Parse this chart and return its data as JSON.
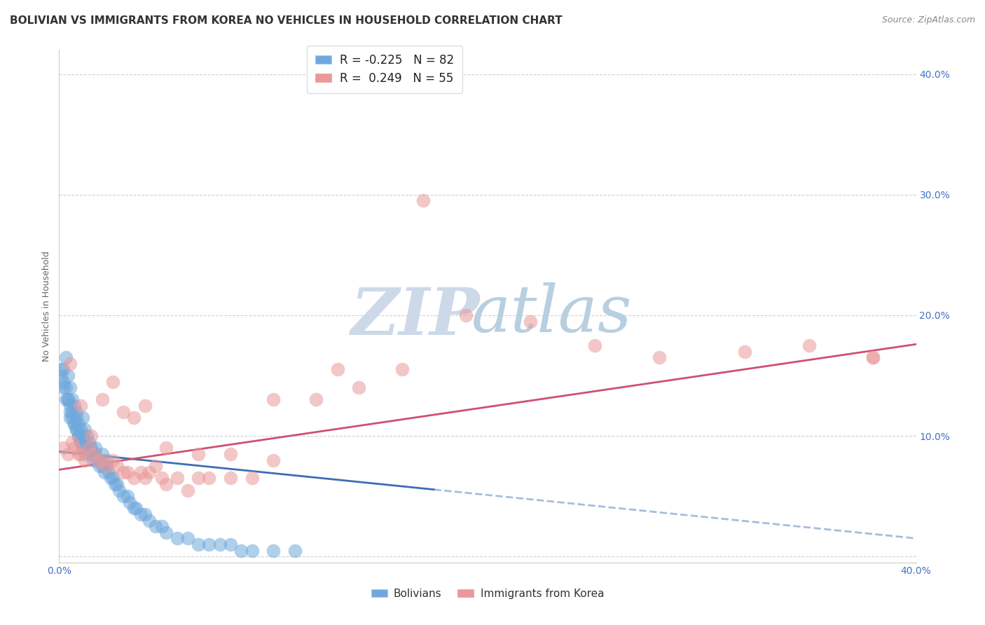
{
  "title": "BOLIVIAN VS IMMIGRANTS FROM KOREA NO VEHICLES IN HOUSEHOLD CORRELATION CHART",
  "source": "Source: ZipAtlas.com",
  "ylabel": "No Vehicles in Household",
  "xlim": [
    0.0,
    0.4
  ],
  "ylim": [
    -0.005,
    0.42
  ],
  "bolivians_color": "#6fa8dc",
  "korea_color": "#ea9999",
  "legend_R_bolivians": "R = -0.225",
  "legend_N_bolivians": "N = 82",
  "legend_R_korea": "R =  0.249",
  "legend_N_korea": "N = 55",
  "watermark_zip_color": "#cdd9e8",
  "watermark_atlas_color": "#b8cfe0",
  "trend_bolivians_color": "#3d6eb5",
  "trend_korea_color": "#d05070",
  "background_color": "#ffffff",
  "grid_color": "#cccccc",
  "title_fontsize": 11,
  "axis_label_fontsize": 9,
  "tick_fontsize": 10,
  "tick_color": "#4472c4",
  "source_color": "#888888",
  "bolivians_x": [
    0.001,
    0.002,
    0.002,
    0.003,
    0.003,
    0.004,
    0.004,
    0.005,
    0.005,
    0.005,
    0.006,
    0.006,
    0.007,
    0.007,
    0.008,
    0.008,
    0.008,
    0.009,
    0.009,
    0.01,
    0.01,
    0.01,
    0.011,
    0.011,
    0.012,
    0.012,
    0.013,
    0.013,
    0.014,
    0.014,
    0.015,
    0.015,
    0.016,
    0.016,
    0.017,
    0.017,
    0.018,
    0.019,
    0.02,
    0.02,
    0.021,
    0.022,
    0.022,
    0.023,
    0.024,
    0.025,
    0.026,
    0.027,
    0.028,
    0.03,
    0.032,
    0.033,
    0.035,
    0.036,
    0.038,
    0.04,
    0.042,
    0.045,
    0.048,
    0.05,
    0.055,
    0.06,
    0.065,
    0.07,
    0.075,
    0.08,
    0.085,
    0.09,
    0.1,
    0.11,
    0.001,
    0.002,
    0.003,
    0.004,
    0.005,
    0.006,
    0.007,
    0.008,
    0.009,
    0.01,
    0.011,
    0.012
  ],
  "bolivians_y": [
    0.155,
    0.155,
    0.145,
    0.165,
    0.14,
    0.15,
    0.13,
    0.12,
    0.115,
    0.14,
    0.13,
    0.12,
    0.11,
    0.125,
    0.105,
    0.115,
    0.12,
    0.1,
    0.11,
    0.1,
    0.105,
    0.095,
    0.1,
    0.115,
    0.095,
    0.105,
    0.09,
    0.1,
    0.09,
    0.095,
    0.085,
    0.09,
    0.08,
    0.085,
    0.085,
    0.09,
    0.08,
    0.075,
    0.075,
    0.085,
    0.07,
    0.075,
    0.08,
    0.07,
    0.065,
    0.065,
    0.06,
    0.06,
    0.055,
    0.05,
    0.05,
    0.045,
    0.04,
    0.04,
    0.035,
    0.035,
    0.03,
    0.025,
    0.025,
    0.02,
    0.015,
    0.015,
    0.01,
    0.01,
    0.01,
    0.01,
    0.005,
    0.005,
    0.005,
    0.005,
    0.15,
    0.14,
    0.13,
    0.13,
    0.125,
    0.115,
    0.11,
    0.105,
    0.1,
    0.095,
    0.09,
    0.085
  ],
  "korea_x": [
    0.002,
    0.004,
    0.006,
    0.007,
    0.009,
    0.01,
    0.012,
    0.014,
    0.016,
    0.018,
    0.02,
    0.022,
    0.025,
    0.027,
    0.03,
    0.032,
    0.035,
    0.038,
    0.04,
    0.042,
    0.045,
    0.048,
    0.05,
    0.055,
    0.06,
    0.065,
    0.07,
    0.08,
    0.09,
    0.1,
    0.12,
    0.14,
    0.16,
    0.19,
    0.22,
    0.25,
    0.28,
    0.32,
    0.35,
    0.38,
    0.005,
    0.01,
    0.015,
    0.02,
    0.025,
    0.03,
    0.035,
    0.04,
    0.05,
    0.065,
    0.08,
    0.1,
    0.13,
    0.17,
    0.38
  ],
  "korea_y": [
    0.09,
    0.085,
    0.095,
    0.09,
    0.085,
    0.085,
    0.08,
    0.09,
    0.085,
    0.08,
    0.08,
    0.075,
    0.08,
    0.075,
    0.07,
    0.07,
    0.065,
    0.07,
    0.065,
    0.07,
    0.075,
    0.065,
    0.06,
    0.065,
    0.055,
    0.065,
    0.065,
    0.065,
    0.065,
    0.08,
    0.13,
    0.14,
    0.155,
    0.2,
    0.195,
    0.175,
    0.165,
    0.17,
    0.175,
    0.165,
    0.16,
    0.125,
    0.1,
    0.13,
    0.145,
    0.12,
    0.115,
    0.125,
    0.09,
    0.085,
    0.085,
    0.13,
    0.155,
    0.295,
    0.165
  ],
  "trend_bolivia_start_x": 0.0,
  "trend_bolivia_end_solid_x": 0.175,
  "trend_bolivia_end_x": 0.4,
  "trend_bolivia_start_y": 0.087,
  "trend_bolivia_slope": -0.18,
  "trend_korea_start_x": 0.0,
  "trend_korea_end_x": 0.4,
  "trend_korea_start_y": 0.072,
  "trend_korea_slope": 0.26
}
